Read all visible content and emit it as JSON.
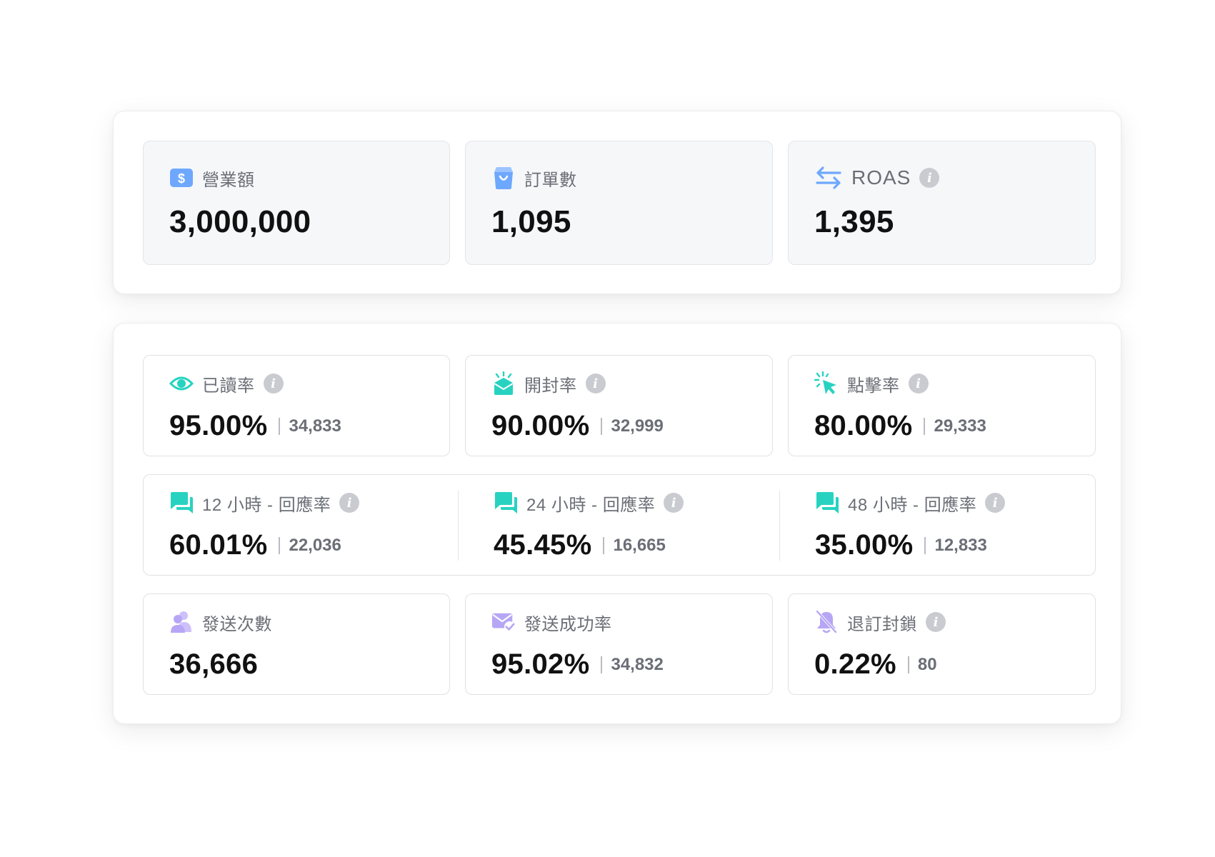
{
  "summary": {
    "revenue": {
      "label": "營業額",
      "value": "3,000,000",
      "icon": "dollar-icon",
      "color": "#6ea8fe"
    },
    "orders": {
      "label": "訂單數",
      "value": "1,095",
      "icon": "shopping-bag-icon",
      "color": "#6ea8fe"
    },
    "roas": {
      "label": "ROAS",
      "value": "1,395",
      "icon": "swap-arrows-icon",
      "color": "#6ea8fe"
    }
  },
  "metrics": {
    "read_rate": {
      "label": "已讀率",
      "percent": "95.00%",
      "count": "34,833",
      "icon": "eye-icon",
      "color": "#27d3c0"
    },
    "open_rate": {
      "label": "開封率",
      "percent": "90.00%",
      "count": "32,999",
      "icon": "open-envelope-icon",
      "color": "#27d3c0"
    },
    "click_rate": {
      "label": "點擊率",
      "percent": "80.00%",
      "count": "29,333",
      "icon": "cursor-click-icon",
      "color": "#27d3c0"
    },
    "reply_12h": {
      "label": "12 小時 - 回應率",
      "percent": "60.01%",
      "count": "22,036",
      "icon": "chat-bubbles-icon",
      "color": "#27d3c0"
    },
    "reply_24h": {
      "label": "24 小時 - 回應率",
      "percent": "45.45%",
      "count": "16,665",
      "icon": "chat-bubbles-icon",
      "color": "#27d3c0"
    },
    "reply_48h": {
      "label": "48 小時 - 回應率",
      "percent": "35.00%",
      "count": "12,833",
      "icon": "chat-bubbles-icon",
      "color": "#27d3c0"
    },
    "send_count": {
      "label": "發送次數",
      "value": "36,666",
      "icon": "users-icon",
      "color": "#b7a6f5"
    },
    "send_success": {
      "label": "發送成功率",
      "percent": "95.02%",
      "count": "34,832",
      "icon": "mail-check-icon",
      "color": "#b7a6f5"
    },
    "unsubscribe": {
      "label": "退訂封鎖",
      "percent": "0.22%",
      "count": "80",
      "icon": "bell-off-icon",
      "color": "#b7a6f5"
    }
  },
  "info_glyph": "i"
}
